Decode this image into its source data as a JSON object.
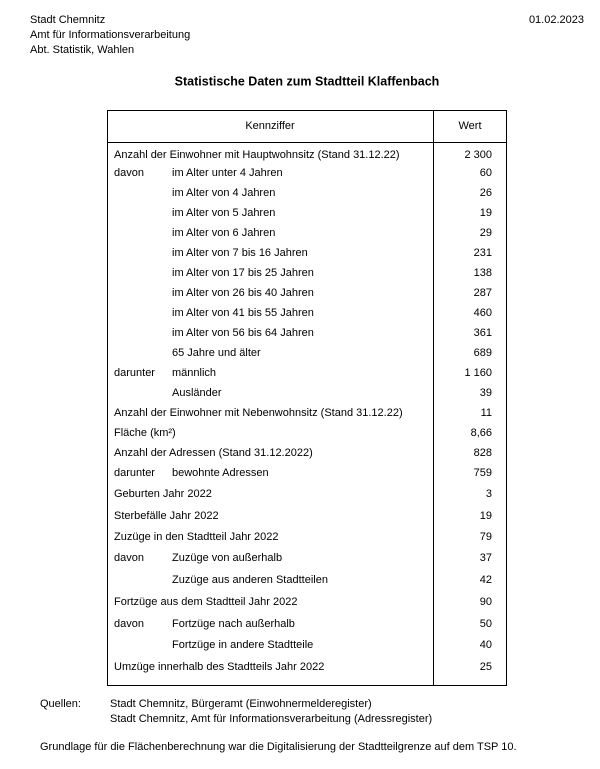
{
  "header": {
    "org": [
      "Stadt Chemnitz",
      "Amt für Informationsverarbeitung",
      "Abt. Statistik, Wahlen"
    ],
    "date": "01.02.2023"
  },
  "title": "Statistische Daten zum Stadtteil Klaffenbach",
  "table": {
    "columns": [
      "Kennziffer",
      "Wert"
    ],
    "rows": [
      {
        "label": "Anzahl der Einwohner mit Hauptwohnsitz (Stand 31.12.22)",
        "value": "2 300"
      },
      {
        "prefix": "davon",
        "sub": "im Alter unter 4 Jahren",
        "value": "60"
      },
      {
        "sub": "im Alter von 4 Jahren",
        "value": "26"
      },
      {
        "sub": "im Alter von 5 Jahren",
        "value": "19"
      },
      {
        "sub": "im Alter von 6 Jahren",
        "value": "29"
      },
      {
        "sub": "im Alter von 7 bis 16 Jahren",
        "value": "231"
      },
      {
        "sub": "im Alter von 17 bis 25 Jahren",
        "value": "138"
      },
      {
        "sub": "im Alter von 26 bis 40 Jahren",
        "value": "287"
      },
      {
        "sub": "im Alter von 41 bis 55 Jahren",
        "value": "460"
      },
      {
        "sub": "im Alter von 56 bis 64 Jahren",
        "value": "361"
      },
      {
        "sub": "65 Jahre und älter",
        "value": "689"
      },
      {
        "prefix": "darunter",
        "sub": "männlich",
        "value": "1 160"
      },
      {
        "sub": "Ausländer",
        "value": "39"
      },
      {
        "label": "Anzahl der Einwohner mit Nebenwohnsitz  (Stand 31.12.22)",
        "value": "11"
      },
      {
        "label": "Fläche (km²)",
        "value": "8,66"
      },
      {
        "label": "Anzahl der Adressen (Stand 31.12.2022)",
        "value": "828"
      },
      {
        "prefix": "darunter",
        "sub": "bewohnte Adressen",
        "value": "759"
      },
      {
        "label": "Geburten Jahr 2022",
        "value": "3"
      },
      {
        "label": "Sterbefälle Jahr 2022",
        "value": "19"
      },
      {
        "label": "Zuzüge in den Stadtteil Jahr 2022",
        "value": "79"
      },
      {
        "prefix": "davon",
        "sub": "Zuzüge von außerhalb",
        "value": "37"
      },
      {
        "sub": "Zuzüge aus anderen Stadtteilen",
        "value": "42"
      },
      {
        "label": "Fortzüge aus dem Stadtteil Jahr 2022",
        "value": "90"
      },
      {
        "prefix": "davon",
        "sub": "Fortzüge nach außerhalb",
        "value": "50"
      },
      {
        "sub": "Fortzüge in andere Stadtteile",
        "value": "40"
      },
      {
        "label": "Umzüge innerhalb des Stadtteils Jahr 2022",
        "value": "25"
      }
    ]
  },
  "sources": {
    "label": "Quellen:",
    "items": [
      "Stadt Chemnitz, Bürgeramt (Einwohnermelderegister)",
      "Stadt Chemnitz, Amt für Informationsverarbeitung (Adressregister)"
    ]
  },
  "note": "Grundlage für die Flächenberechnung war die Digitalisierung der Stadtteilgrenze auf dem TSP 10."
}
